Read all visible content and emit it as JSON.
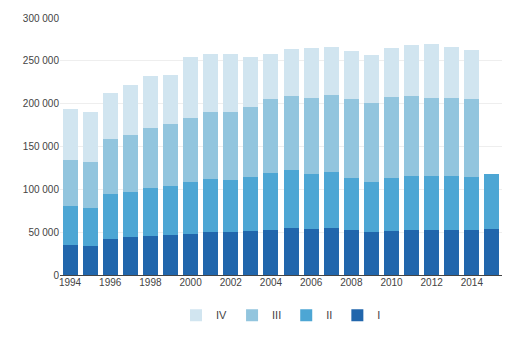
{
  "chart_data": {
    "type": "bar",
    "stacked": true,
    "categories": [
      "1994",
      null,
      "1996",
      null,
      "1998",
      null,
      "2000",
      null,
      "2002",
      null,
      "2004",
      null,
      "2006",
      null,
      "2008",
      null,
      "2010",
      null,
      "2012",
      null,
      "2014",
      null
    ],
    "series": [
      {
        "name": "I",
        "color": "#2166ac",
        "values": [
          35000,
          34000,
          42000,
          44000,
          46000,
          47000,
          48000,
          50000,
          50000,
          51000,
          53000,
          55000,
          54000,
          55000,
          53000,
          50000,
          51000,
          53000,
          53000,
          53000,
          53000,
          54000
        ]
      },
      {
        "name": "II",
        "color": "#4da6d4",
        "values": [
          45000,
          44000,
          52000,
          53000,
          56000,
          57000,
          60000,
          62000,
          61000,
          63000,
          66000,
          67000,
          64000,
          65000,
          60000,
          59000,
          62000,
          63000,
          62000,
          62000,
          61000,
          64000
        ]
      },
      {
        "name": "III",
        "color": "#92c5de",
        "values": [
          54000,
          54000,
          65000,
          67000,
          70000,
          72000,
          75000,
          78000,
          79000,
          82000,
          86000,
          87000,
          89000,
          90000,
          92000,
          92000,
          95000,
          93000,
          92000,
          92000,
          92000,
          0
        ]
      },
      {
        "name": "IV",
        "color": "#d1e5f0",
        "values": [
          60000,
          58000,
          53000,
          58000,
          60000,
          57000,
          72000,
          68000,
          68000,
          58000,
          53000,
          55000,
          58000,
          56000,
          56000,
          56000,
          57000,
          59000,
          63000,
          59000,
          57000,
          0
        ]
      }
    ],
    "ylim": [
      0,
      300000
    ],
    "yticks": [
      0,
      {
        "value": 50000,
        "label": "50 000"
      },
      {
        "value": 100000,
        "label": "100 000"
      },
      {
        "value": 150000,
        "label": "150 000"
      },
      {
        "value": 200000,
        "label": "200 000"
      },
      {
        "value": 250000,
        "label": "250 000"
      },
      {
        "value": 300000,
        "label": "300 000"
      }
    ],
    "grid": true,
    "legend": "bottom"
  }
}
